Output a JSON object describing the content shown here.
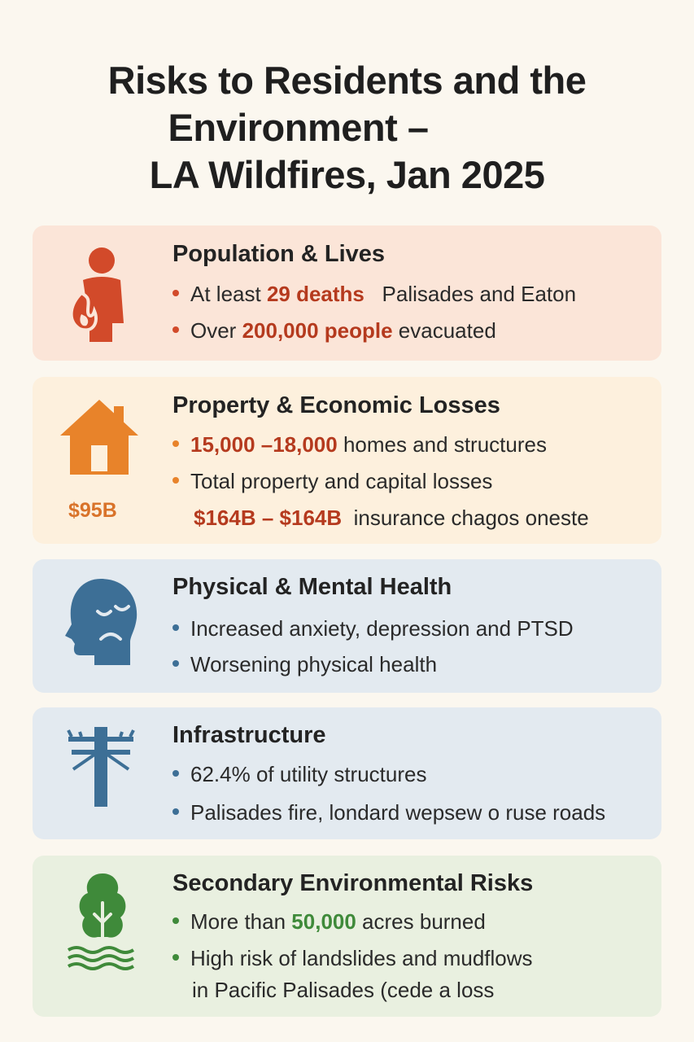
{
  "title": {
    "line1": "Risks to Residents and the",
    "line2": "Environment –",
    "line3": "LA Wildfires, Jan 2025"
  },
  "colors": {
    "background": "#fbf7ef",
    "card1": "#fbe5d8",
    "card2": "#fdf0dd",
    "card3": "#e3eaf0",
    "card4": "#e3eaf0",
    "card5": "#e9f0e0",
    "highlight_red": "#b53a1e",
    "highlight_green": "#3f8a3a",
    "icon_red": "#d24a2a",
    "icon_orange": "#e8832a",
    "icon_blue": "#3d6f96",
    "icon_green": "#3f8a3a"
  },
  "cards": {
    "population": {
      "icon": "person-fire-icon",
      "heading": "Population & Lives",
      "b1_pre": "At least ",
      "b1_hl": "29 deaths",
      "b1_post": "   Palisades and Eaton",
      "b2_pre": "Over ",
      "b2_hl": "200,000 people",
      "b2_post": " evacuated"
    },
    "property": {
      "icon": "house-icon",
      "badge": "$95B",
      "heading": "Property & Economic Losses",
      "b1_hl": "15,000 –18,000",
      "b1_post": " homes and structures",
      "b2_text": "Total property and capital losses",
      "b2_cont_hl": "$164B – $164B",
      "b2_cont_post": "  insurance chagos oneste"
    },
    "health": {
      "icon": "sad-head-icon",
      "heading": "Physical & Mental Health",
      "b1_text": "Increased anxiety, depression and PTSD",
      "b2_text": "Worsening physical health"
    },
    "infrastructure": {
      "icon": "utility-pole-icon",
      "heading": "Infrastructure",
      "b1_text": "62.4% of utility structures",
      "b2_text": "Palisades fire, londard wepsew o ruse roads"
    },
    "environment": {
      "icon": "tree-water-icon",
      "heading": "Secondary Environmental Risks",
      "b1_pre": "More than ",
      "b1_hl": "50,000",
      "b1_post": " acres burned",
      "b2_text": "High risk of landslides and mudflows",
      "b2_cont": "in Pacific Palisades (cede a loss"
    }
  }
}
